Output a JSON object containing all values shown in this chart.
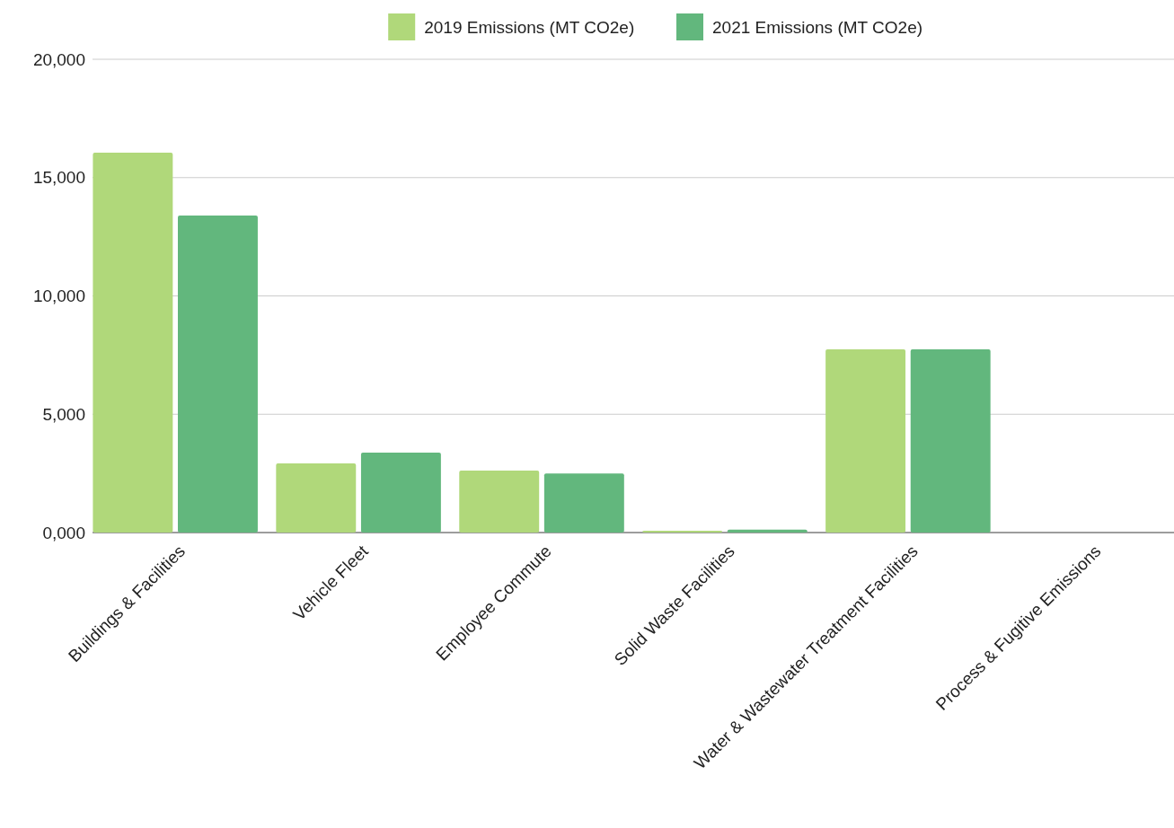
{
  "chart_data": {
    "type": "bar",
    "categories": [
      "Buildings & Facilities",
      "Vehicle Fleet",
      "Employee Commute",
      "Solid Waste Facilities",
      "Water & Wastewater Treatment Facilities",
      "Process & Fugitive Emissions"
    ],
    "series": [
      {
        "name": "2019 Emissions (MT CO2e)",
        "color": "#b0d87a",
        "values": [
          16050,
          2920,
          2620,
          80,
          7740,
          0
        ]
      },
      {
        "name": "2021 Emissions (MT CO2e)",
        "color": "#62b77d",
        "values": [
          13400,
          3380,
          2500,
          120,
          7740,
          0
        ]
      }
    ],
    "ylim": [
      0,
      20000
    ],
    "yticks": [
      {
        "value": 0,
        "label": "0,000"
      },
      {
        "value": 5000,
        "label": "5,000"
      },
      {
        "value": 10000,
        "label": "10,000"
      },
      {
        "value": 15000,
        "label": "15,000"
      },
      {
        "value": 20000,
        "label": "20,000"
      }
    ],
    "grid": "y",
    "legend": "top"
  }
}
